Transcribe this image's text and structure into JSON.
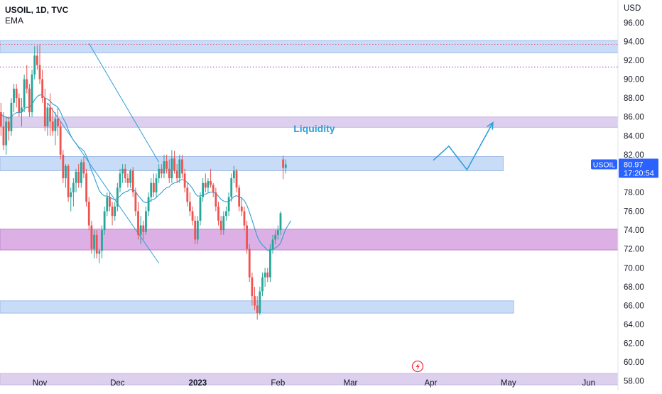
{
  "chart_data": {
    "type": "candlestick",
    "symbol_line": "USOIL, 1D, TVC",
    "indicator": "EMA",
    "currency": "USD",
    "y_ticks": [
      "58.00",
      "60.00",
      "62.00",
      "64.00",
      "66.00",
      "68.00",
      "70.00",
      "72.00",
      "74.00",
      "76.00",
      "78.00",
      "80.00",
      "82.00",
      "84.00",
      "86.00",
      "88.00",
      "90.00",
      "92.00",
      "94.00",
      "96.00"
    ],
    "ylim": [
      57,
      98.4
    ],
    "x_labels": [
      {
        "label": "Nov",
        "day": 0,
        "bold": false
      },
      {
        "label": "Dec",
        "day": 30,
        "bold": false
      },
      {
        "label": "2023",
        "day": 61,
        "bold": true
      },
      {
        "label": "Feb",
        "day": 92,
        "bold": false
      },
      {
        "label": "Mar",
        "day": 120,
        "bold": false
      },
      {
        "label": "Apr",
        "day": 151,
        "bold": false
      },
      {
        "label": "May",
        "day": 181,
        "bold": false
      },
      {
        "label": "Jun",
        "day": 212,
        "bold": false
      }
    ],
    "price_label": {
      "symbol": "USOIL",
      "price": "80.97",
      "countdown": "17:20:54",
      "value": 80.97
    },
    "annotation": {
      "text": "Liquidity",
      "day": 106,
      "price": 84.4
    },
    "zones": [
      {
        "kind": "blue",
        "top": 94.1,
        "bottom": 92.8,
        "day_end": null
      },
      {
        "kind": "purple",
        "top": 86.0,
        "bottom": 84.9,
        "day_end": null
      },
      {
        "kind": "blue",
        "top": 81.8,
        "bottom": 80.3,
        "day_end": 179
      },
      {
        "kind": "magenta",
        "top": 74.1,
        "bottom": 71.9,
        "day_end": null
      },
      {
        "kind": "blue",
        "top": 66.5,
        "bottom": 65.2,
        "day_end": 183
      },
      {
        "kind": "purple",
        "top": 58.8,
        "bottom": 57.6,
        "day_end": null
      }
    ],
    "dotted_levels": [
      {
        "price": 93.7,
        "color": "#e05a8a"
      },
      {
        "price": 91.3,
        "color": "#8e3ba6"
      }
    ],
    "projection": [
      [
        152,
        81.4
      ],
      [
        158,
        82.9
      ],
      [
        165,
        80.4
      ],
      [
        175,
        85.4
      ]
    ],
    "channel_lines": [
      [
        [
          3,
          87.5
        ],
        [
          46,
          70.5
        ]
      ],
      [
        [
          19,
          93.8
        ],
        [
          46,
          81.2
        ]
      ]
    ],
    "candles": [
      [
        -16,
        84.0,
        87.0,
        83.0,
        86.5
      ],
      [
        -15,
        86.5,
        87.5,
        84.0,
        85.0
      ],
      [
        -14,
        85.0,
        86.5,
        82.5,
        83.0
      ],
      [
        -13,
        83.0,
        86.0,
        82.0,
        85.5
      ],
      [
        -12,
        85.5,
        86.0,
        83.5,
        84.5
      ],
      [
        -11,
        84.5,
        88.0,
        84.0,
        87.5
      ],
      [
        -10,
        87.5,
        89.5,
        86.5,
        89.0
      ],
      [
        -9,
        89.0,
        89.5,
        87.0,
        88.0
      ],
      [
        -8,
        88.0,
        88.5,
        86.0,
        86.5
      ],
      [
        -7,
        86.5,
        88.0,
        85.0,
        87.0
      ],
      [
        -6,
        87.0,
        90.5,
        86.5,
        90.0
      ],
      [
        -5,
        90.0,
        91.5,
        88.5,
        89.0
      ],
      [
        -4,
        89.0,
        89.5,
        86.0,
        86.5
      ],
      [
        -3,
        86.5,
        91.0,
        86.0,
        90.5
      ],
      [
        -2,
        90.5,
        93.5,
        90.0,
        92.5
      ],
      [
        -1,
        92.5,
        93.6,
        91.0,
        91.5
      ],
      [
        0,
        91.5,
        93.7,
        89.5,
        90.0
      ],
      [
        1,
        90.0,
        91.0,
        87.5,
        88.0
      ],
      [
        2,
        88.0,
        89.0,
        84.5,
        85.0
      ],
      [
        3,
        85.0,
        87.5,
        84.0,
        87.0
      ],
      [
        4,
        87.0,
        88.5,
        84.0,
        85.5
      ],
      [
        5,
        85.5,
        87.0,
        84.0,
        84.5
      ],
      [
        6,
        84.5,
        86.5,
        83.0,
        85.8
      ],
      [
        7,
        85.8,
        87.0,
        84.0,
        85.0
      ],
      [
        8,
        85.0,
        85.5,
        81.5,
        82.0
      ],
      [
        9,
        82.0,
        82.5,
        79.0,
        79.5
      ],
      [
        10,
        79.5,
        81.0,
        78.5,
        80.8
      ],
      [
        11,
        80.8,
        81.0,
        77.0,
        77.5
      ],
      [
        12,
        77.5,
        78.5,
        76.0,
        78.0
      ],
      [
        13,
        78.0,
        79.5,
        76.5,
        79.0
      ],
      [
        14,
        79.0,
        80.5,
        78.0,
        80.2
      ],
      [
        15,
        80.2,
        81.0,
        78.5,
        79.0
      ],
      [
        16,
        79.0,
        81.5,
        78.5,
        81.2
      ],
      [
        17,
        81.2,
        81.8,
        79.5,
        80.0
      ],
      [
        18,
        80.0,
        80.5,
        76.5,
        77.0
      ],
      [
        19,
        77.0,
        77.5,
        74.0,
        74.5
      ],
      [
        20,
        74.5,
        75.0,
        71.5,
        72.0
      ],
      [
        21,
        72.0,
        74.0,
        71.0,
        73.5
      ],
      [
        22,
        73.5,
        74.0,
        71.0,
        71.5
      ],
      [
        23,
        71.5,
        72.0,
        70.5,
        71.8
      ],
      [
        24,
        71.8,
        74.5,
        71.0,
        74.0
      ],
      [
        25,
        74.0,
        76.5,
        73.5,
        76.0
      ],
      [
        26,
        76.0,
        78.0,
        75.5,
        77.5
      ],
      [
        27,
        77.5,
        78.0,
        76.0,
        76.5
      ],
      [
        28,
        76.5,
        77.0,
        74.5,
        75.5
      ],
      [
        29,
        75.5,
        77.0,
        75.0,
        76.5
      ],
      [
        30,
        76.5,
        79.0,
        76.0,
        78.5
      ],
      [
        31,
        78.5,
        80.5,
        78.0,
        80.0
      ],
      [
        32,
        80.0,
        81.0,
        79.0,
        80.5
      ],
      [
        33,
        80.5,
        81.0,
        79.0,
        79.5
      ],
      [
        34,
        79.5,
        80.0,
        78.5,
        79.0
      ],
      [
        35,
        79.0,
        80.5,
        78.5,
        80.3
      ],
      [
        36,
        80.3,
        80.7,
        77.5,
        78.0
      ],
      [
        37,
        78.0,
        78.5,
        75.5,
        76.0
      ],
      [
        38,
        76.0,
        77.0,
        73.0,
        73.5
      ],
      [
        39,
        73.5,
        75.5,
        72.5,
        74.5
      ],
      [
        40,
        74.5,
        75.0,
        73.0,
        73.8
      ],
      [
        41,
        73.8,
        76.5,
        73.5,
        76.0
      ],
      [
        42,
        76.0,
        78.0,
        75.5,
        77.5
      ],
      [
        43,
        77.5,
        79.5,
        77.0,
        79.0
      ],
      [
        44,
        79.0,
        80.0,
        77.5,
        78.0
      ],
      [
        45,
        78.0,
        80.0,
        77.5,
        79.5
      ],
      [
        46,
        79.5,
        81.0,
        79.0,
        80.5
      ],
      [
        47,
        80.5,
        81.0,
        79.5,
        80.0
      ],
      [
        48,
        80.0,
        82.0,
        79.5,
        81.3
      ],
      [
        49,
        81.3,
        82.0,
        80.0,
        80.5
      ],
      [
        50,
        80.5,
        81.5,
        79.0,
        79.5
      ],
      [
        51,
        79.5,
        82.5,
        79.0,
        81.6
      ],
      [
        52,
        81.6,
        82.4,
        80.0,
        80.3
      ],
      [
        53,
        80.3,
        81.0,
        79.0,
        79.5
      ],
      [
        54,
        79.5,
        82.0,
        79.0,
        81.5
      ],
      [
        55,
        81.5,
        82.0,
        79.5,
        80.0
      ],
      [
        56,
        80.0,
        80.5,
        78.0,
        78.5
      ],
      [
        57,
        78.5,
        79.0,
        76.5,
        77.0
      ],
      [
        58,
        77.0,
        78.0,
        75.5,
        76.0
      ],
      [
        59,
        76.0,
        76.5,
        74.5,
        75.0
      ],
      [
        60,
        75.0,
        75.5,
        72.5,
        73.0
      ],
      [
        61,
        73.0,
        75.5,
        72.5,
        75.0
      ],
      [
        62,
        75.0,
        78.0,
        74.5,
        77.5
      ],
      [
        63,
        77.5,
        79.5,
        77.0,
        79.0
      ],
      [
        64,
        79.0,
        80.0,
        78.0,
        78.5
      ],
      [
        65,
        78.5,
        79.5,
        78.0,
        79.2
      ],
      [
        66,
        79.2,
        80.5,
        78.5,
        78.8
      ],
      [
        67,
        78.8,
        79.0,
        77.5,
        78.0
      ],
      [
        68,
        78.0,
        78.5,
        76.0,
        76.5
      ],
      [
        69,
        76.5,
        77.0,
        74.5,
        75.0
      ],
      [
        70,
        75.0,
        75.5,
        73.5,
        74.0
      ],
      [
        71,
        74.0,
        76.0,
        73.5,
        75.5
      ],
      [
        72,
        75.5,
        76.5,
        75.0,
        76.0
      ],
      [
        73,
        76.0,
        78.0,
        75.5,
        77.5
      ],
      [
        74,
        77.5,
        80.0,
        77.0,
        79.5
      ],
      [
        75,
        79.5,
        80.8,
        79.0,
        80.3
      ],
      [
        76,
        80.3,
        80.5,
        78.0,
        78.5
      ],
      [
        77,
        78.5,
        78.8,
        76.0,
        76.5
      ],
      [
        78,
        76.5,
        77.5,
        75.5,
        76.0
      ],
      [
        79,
        76.0,
        76.5,
        74.0,
        74.5
      ],
      [
        80,
        74.5,
        75.0,
        71.5,
        72.0
      ],
      [
        81,
        72.0,
        72.5,
        68.5,
        69.0
      ],
      [
        82,
        69.0,
        69.5,
        66.0,
        67.0
      ],
      [
        83,
        67.0,
        68.0,
        65.5,
        66.0
      ],
      [
        84,
        66.0,
        67.0,
        64.5,
        65.2
      ],
      [
        85,
        65.2,
        68.0,
        65.0,
        67.5
      ],
      [
        86,
        67.5,
        69.5,
        67.0,
        69.0
      ],
      [
        87,
        69.0,
        70.0,
        68.0,
        69.5
      ],
      [
        88,
        69.5,
        70.0,
        68.5,
        69.0
      ],
      [
        89,
        69.0,
        72.5,
        68.5,
        72.0
      ],
      [
        90,
        72.0,
        73.5,
        71.5,
        73.0
      ],
      [
        91,
        73.0,
        74.0,
        72.5,
        73.5
      ],
      [
        92,
        73.5,
        74.5,
        73.0,
        74.0
      ],
      [
        93,
        74.0,
        76.0,
        73.5,
        75.8
      ],
      [
        94,
        81.5,
        81.9,
        79.4,
        80.6
      ],
      [
        95,
        80.6,
        81.5,
        80.0,
        80.97
      ]
    ]
  }
}
